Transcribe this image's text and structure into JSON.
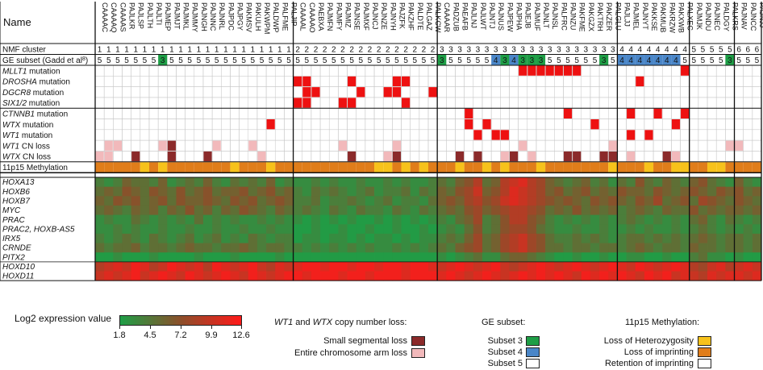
{
  "chart_data": {
    "type": "heatmap",
    "corner_label": "Name",
    "samples": [
      "CAAAAC",
      "CAAAAQ",
      "CAAAAS",
      "PAJLKR",
      "PAJLSP",
      "PAJLTH",
      "PAJLTI",
      "PAJMEP",
      "PAJMJT",
      "PAJMKL",
      "PAJMMY",
      "PAJNGH",
      "PAJNNC",
      "PAJNRL",
      "PAJPDC",
      "PAJPGY",
      "PAKMSV",
      "PAKULH",
      "PAKWPM",
      "PALDWP",
      "PALFME",
      "PALJIP",
      "CAAAAL",
      "CAAAAO",
      "PAEBXA",
      "PAJMFN",
      "PAJMFY",
      "PAJMIZ",
      "PAJNSE",
      "PAJMXF",
      "PAJNCJ",
      "PAJNZE",
      "PAJNYH",
      "PAJZFK",
      "PAKZHF",
      "PALDTE",
      "PALGAZ",
      "PALKCW",
      "CAAAAR",
      "PADZUB",
      "PAEAFB",
      "PAJLNJ",
      "PAJLWT",
      "PAJNTJ",
      "PAJNUS",
      "PAJPEW",
      "PAJPHA",
      "PAJEJB",
      "PAJMUF",
      "PAJNLT",
      "PAJNSL",
      "PALFRC",
      "PAJNZU",
      "PAKFME",
      "PAKGZX",
      "PAKTRH",
      "PAKZER",
      "PALGLU",
      "PAJLJJ",
      "PAJMEL",
      "PAJNYT",
      "PAKKSE",
      "PAKMUB",
      "PAKRZW",
      "PAKXWB",
      "PALXEC",
      "PAJMJK",
      "PAJNDU",
      "PAJNEC",
      "PALDGY",
      "PALKRS",
      "PAJNAV",
      "PAJNCC",
      "PAJNJJ"
    ],
    "cluster_row_label": "NMF cluster",
    "clusters": [
      1,
      1,
      1,
      1,
      1,
      1,
      1,
      1,
      1,
      1,
      1,
      1,
      1,
      1,
      1,
      1,
      1,
      1,
      1,
      1,
      1,
      1,
      2,
      2,
      2,
      2,
      2,
      2,
      2,
      2,
      2,
      2,
      2,
      2,
      2,
      2,
      2,
      2,
      3,
      3,
      3,
      3,
      3,
      3,
      3,
      3,
      3,
      3,
      3,
      3,
      3,
      3,
      3,
      3,
      3,
      3,
      3,
      3,
      4,
      4,
      4,
      4,
      4,
      4,
      4,
      4,
      5,
      5,
      5,
      5,
      5,
      6,
      6,
      6
    ],
    "ge_row_label_main": "GE subset (Gadd et al",
    "ge_row_label_sup": "8",
    "ge_row_label_end": ")",
    "ge_subsets": [
      5,
      5,
      5,
      5,
      5,
      5,
      5,
      3,
      5,
      5,
      5,
      5,
      5,
      5,
      5,
      5,
      5,
      5,
      5,
      5,
      5,
      5,
      5,
      5,
      5,
      5,
      5,
      5,
      5,
      5,
      5,
      5,
      5,
      5,
      5,
      5,
      5,
      5,
      3,
      5,
      5,
      5,
      5,
      5,
      4,
      3,
      4,
      3,
      3,
      3,
      5,
      5,
      5,
      5,
      5,
      5,
      3,
      5,
      4,
      4,
      4,
      4,
      4,
      4,
      4,
      5,
      5,
      5,
      5,
      5,
      3,
      5,
      5,
      5
    ],
    "ge_colors": {
      "3": "#1e9e46",
      "4": "#4a86c8",
      "5": "#ffffff"
    },
    "mutation_groups": [
      [
        {
          "label": "MLLT1",
          "suffix": " mutation",
          "cells": [
            47,
            48,
            49,
            50,
            51,
            52,
            53,
            65
          ]
        },
        {
          "label": "DROSHA",
          "suffix": " mutation",
          "cells": [
            22,
            23,
            28,
            33,
            34,
            60
          ]
        },
        {
          "label": "DGCR8",
          "suffix": " mutation",
          "cells": [
            23,
            24,
            29,
            32,
            33,
            37
          ]
        },
        {
          "label": "SIX1/2",
          "suffix": " mutation",
          "cells": [
            22,
            23,
            27,
            28,
            34
          ]
        }
      ],
      [
        {
          "label": "CTNNB1",
          "suffix": " mutation",
          "cells": [
            41,
            52,
            59,
            62,
            65
          ]
        },
        {
          "label": "WTX",
          "suffix": " mutation",
          "cells": [
            19,
            41,
            43,
            55,
            64
          ]
        },
        {
          "label": "WT1",
          "suffix": " mutation",
          "cells": [
            42,
            44,
            45,
            59,
            61
          ]
        },
        {
          "label": "WT1",
          "suffix": " CN loss",
          "cells": [
            8
          ],
          "light_cells": [
            1,
            2,
            7,
            13,
            17,
            27,
            33,
            47,
            57,
            70,
            71
          ]
        },
        {
          "label": "WTX",
          "suffix": " CN loss",
          "cells": [
            4,
            8,
            12,
            28,
            33,
            40,
            42,
            46,
            52,
            53,
            56,
            57,
            63
          ],
          "light_cells": [
            0,
            1,
            18,
            32,
            45,
            48,
            59,
            64
          ]
        },
        {
          "label": "",
          "suffix": "11p15 Methylation",
          "meth": [
            0,
            0,
            0,
            0,
            0,
            1,
            0,
            1,
            0,
            0,
            0,
            0,
            0,
            0,
            0,
            1,
            0,
            0,
            0,
            1,
            0,
            0,
            0,
            0,
            0,
            0,
            0,
            0,
            0,
            0,
            0,
            1,
            1,
            0,
            1,
            0,
            1,
            0,
            0,
            0,
            1,
            0,
            0,
            1,
            0,
            1,
            0,
            0,
            0,
            1,
            0,
            0,
            0,
            0,
            0,
            0,
            0,
            1,
            0,
            0,
            0,
            1,
            0,
            0,
            1,
            1,
            0,
            0,
            1,
            1,
            0,
            0,
            0,
            0
          ]
        }
      ]
    ],
    "methylation_colors": {
      "0": "#e07d1a",
      "1": "#f7c21b",
      "2": "#ffffff"
    },
    "genes": [
      "HOXA13",
      "HOXB6",
      "HOXB7",
      "MYC",
      "PRAC",
      "PRAC2, HOXB-AS5",
      "IRX5",
      "CRNDE",
      "PITX2",
      "HOXD10",
      "HOXD11"
    ],
    "expression_range": [
      1.8,
      12.6
    ],
    "expression_rows": [
      [
        4,
        3,
        4,
        6,
        5,
        5,
        4,
        6,
        3,
        4,
        5,
        4,
        6,
        4,
        3,
        5,
        4,
        5,
        4,
        6,
        3,
        4,
        3,
        3,
        4,
        3,
        4,
        3,
        3,
        4,
        3,
        3,
        4,
        3,
        4,
        3,
        3,
        4,
        5,
        4,
        6,
        7,
        9,
        5,
        6,
        9,
        10,
        11,
        9,
        8,
        6,
        5,
        4,
        5,
        6,
        4,
        5,
        3,
        5,
        4,
        7,
        5,
        4,
        6,
        5,
        4,
        6,
        7,
        5,
        4,
        3,
        6,
        4,
        3
      ],
      [
        5,
        6,
        5,
        7,
        6,
        5,
        7,
        6,
        5,
        7,
        5,
        6,
        7,
        5,
        6,
        6,
        7,
        5,
        6,
        7,
        5,
        6,
        4,
        3,
        5,
        4,
        5,
        4,
        3,
        4,
        5,
        3,
        4,
        4,
        5,
        3,
        5,
        4,
        6,
        5,
        7,
        8,
        10,
        6,
        7,
        9,
        11,
        10,
        9,
        8,
        6,
        7,
        5,
        6,
        7,
        5,
        6,
        5,
        7,
        6,
        6,
        5,
        7,
        6,
        5,
        6,
        7,
        6,
        5,
        7,
        6,
        7,
        5,
        6
      ],
      [
        6,
        5,
        7,
        6,
        7,
        5,
        6,
        7,
        5,
        7,
        6,
        6,
        7,
        6,
        5,
        7,
        6,
        7,
        5,
        6,
        7,
        6,
        4,
        4,
        5,
        3,
        4,
        4,
        5,
        4,
        3,
        4,
        5,
        3,
        4,
        4,
        3,
        5,
        6,
        7,
        6,
        8,
        9,
        7,
        8,
        10,
        11,
        10,
        9,
        8,
        7,
        6,
        7,
        6,
        5,
        7,
        6,
        7,
        6,
        5,
        7,
        6,
        8,
        5,
        6,
        7,
        5,
        8,
        7,
        6,
        5,
        7,
        6,
        5
      ],
      [
        5,
        6,
        5,
        4,
        6,
        5,
        6,
        4,
        6,
        5,
        7,
        5,
        6,
        4,
        6,
        5,
        7,
        6,
        5,
        4,
        6,
        5,
        4,
        5,
        4,
        3,
        5,
        4,
        3,
        5,
        4,
        4,
        3,
        5,
        4,
        3,
        5,
        4,
        5,
        6,
        5,
        7,
        8,
        6,
        7,
        8,
        9,
        9,
        8,
        7,
        5,
        6,
        5,
        7,
        5,
        6,
        5,
        6,
        4,
        5,
        6,
        5,
        4,
        6,
        5,
        5,
        7,
        5,
        6,
        5,
        6,
        6,
        5,
        6
      ],
      [
        3,
        4,
        3,
        3,
        5,
        4,
        3,
        4,
        3,
        4,
        3,
        5,
        3,
        4,
        3,
        4,
        3,
        3,
        4,
        3,
        4,
        3,
        3,
        2,
        3,
        2,
        3,
        2,
        3,
        2,
        2,
        3,
        2,
        3,
        2,
        3,
        2,
        3,
        4,
        3,
        5,
        6,
        8,
        4,
        5,
        7,
        9,
        9,
        7,
        6,
        4,
        3,
        4,
        3,
        4,
        3,
        4,
        3,
        4,
        5,
        4,
        3,
        4,
        3,
        4,
        3,
        5,
        6,
        4,
        3,
        5,
        4,
        3,
        4
      ],
      [
        3,
        3,
        4,
        3,
        4,
        3,
        3,
        4,
        3,
        3,
        4,
        3,
        3,
        4,
        3,
        3,
        4,
        3,
        3,
        4,
        3,
        3,
        2,
        2,
        3,
        2,
        2,
        3,
        2,
        2,
        3,
        2,
        2,
        3,
        2,
        2,
        3,
        2,
        3,
        4,
        3,
        5,
        7,
        4,
        5,
        7,
        8,
        8,
        7,
        5,
        4,
        3,
        3,
        4,
        3,
        3,
        4,
        3,
        3,
        4,
        3,
        4,
        3,
        3,
        4,
        3,
        4,
        5,
        4,
        3,
        4,
        3,
        4,
        3
      ],
      [
        4,
        3,
        4,
        5,
        4,
        3,
        5,
        4,
        3,
        4,
        5,
        3,
        4,
        5,
        3,
        4,
        3,
        5,
        4,
        3,
        4,
        4,
        2,
        3,
        3,
        2,
        3,
        3,
        2,
        3,
        2,
        3,
        3,
        2,
        3,
        2,
        3,
        3,
        4,
        5,
        4,
        6,
        8,
        5,
        6,
        8,
        9,
        10,
        8,
        7,
        5,
        4,
        4,
        5,
        4,
        5,
        4,
        3,
        4,
        5,
        5,
        4,
        5,
        4,
        5,
        4,
        5,
        6,
        5,
        4,
        5,
        5,
        4,
        5
      ],
      [
        5,
        4,
        5,
        5,
        6,
        4,
        5,
        5,
        4,
        5,
        6,
        5,
        5,
        4,
        5,
        5,
        6,
        5,
        4,
        5,
        5,
        4,
        4,
        3,
        4,
        3,
        4,
        3,
        4,
        3,
        4,
        3,
        3,
        4,
        3,
        4,
        3,
        4,
        5,
        4,
        6,
        7,
        8,
        5,
        6,
        8,
        9,
        10,
        8,
        7,
        5,
        5,
        4,
        5,
        5,
        4,
        5,
        5,
        4,
        5,
        6,
        5,
        4,
        5,
        5,
        4,
        6,
        5,
        5,
        4,
        5,
        5,
        4,
        5
      ],
      [
        2,
        2,
        3,
        2,
        2,
        2,
        3,
        2,
        2,
        2,
        2,
        3,
        2,
        2,
        2,
        3,
        2,
        2,
        2,
        2,
        3,
        2,
        2,
        2,
        2,
        2,
        2,
        2,
        2,
        2,
        2,
        2,
        2,
        2,
        2,
        2,
        2,
        2,
        3,
        2,
        3,
        4,
        5,
        3,
        3,
        5,
        6,
        6,
        5,
        4,
        3,
        2,
        2,
        3,
        2,
        2,
        3,
        2,
        2,
        3,
        3,
        2,
        2,
        3,
        2,
        2,
        4,
        5,
        3,
        3,
        2,
        3,
        2,
        2
      ],
      [
        9,
        10,
        11,
        10,
        12,
        11,
        9,
        10,
        12,
        11,
        10,
        11,
        9,
        12,
        11,
        10,
        11,
        12,
        10,
        9,
        11,
        10,
        11,
        12,
        12,
        11,
        12,
        12,
        11,
        12,
        12,
        11,
        12,
        12,
        11,
        12,
        12,
        11,
        10,
        11,
        12,
        11,
        10,
        11,
        12,
        10,
        9,
        10,
        11,
        12,
        11,
        10,
        11,
        12,
        11,
        10,
        11,
        12,
        11,
        10,
        12,
        11,
        10,
        11,
        12,
        11,
        9,
        8,
        10,
        11,
        9,
        10,
        11,
        10
      ],
      [
        10,
        11,
        10,
        11,
        12,
        10,
        11,
        12,
        11,
        10,
        12,
        11,
        10,
        11,
        12,
        11,
        10,
        12,
        11,
        10,
        11,
        12,
        12,
        11,
        12,
        12,
        12,
        11,
        12,
        12,
        11,
        12,
        12,
        12,
        11,
        12,
        12,
        12,
        11,
        12,
        11,
        10,
        11,
        12,
        11,
        10,
        11,
        12,
        11,
        12,
        11,
        12,
        11,
        10,
        12,
        11,
        12,
        11,
        12,
        11,
        10,
        12,
        11,
        12,
        10,
        11,
        10,
        9,
        11,
        10,
        11,
        11,
        10,
        11
      ]
    ]
  },
  "legend": {
    "color_scale": {
      "title": "Log2 expression value",
      "ticks": [
        "1.8",
        "4.5",
        "7.2",
        "9.9",
        "12.6"
      ],
      "color_low": "#1e9e46",
      "color_mid": "#8c4f2a",
      "color_high": "#ff1a1a"
    },
    "cn_loss": {
      "title_a": "WT1",
      "title_b": " and ",
      "title_c": "WTX",
      "title_d": " copy number loss:",
      "items": [
        {
          "label": "Small segmental loss",
          "color": "#8b2a2a"
        },
        {
          "label": "Entire chromosome arm loss",
          "color": "#f2b9bb"
        }
      ]
    },
    "ge_subset": {
      "title": "GE subset:",
      "items": [
        {
          "label": "Subset 3",
          "color": "#1e9e46"
        },
        {
          "label": "Subset 4",
          "color": "#4a86c8"
        },
        {
          "label": "Subset 5",
          "color": "#ffffff"
        }
      ]
    },
    "methylation": {
      "title": "11p15 Methylation:",
      "items": [
        {
          "label": "Loss of Heterozygosity",
          "color": "#f7c21b"
        },
        {
          "label": "Loss of imprinting",
          "color": "#e07d1a"
        },
        {
          "label": "Retention of imprinting",
          "color": "#ffffff"
        }
      ]
    },
    "mutation_color": "#ee1111"
  }
}
